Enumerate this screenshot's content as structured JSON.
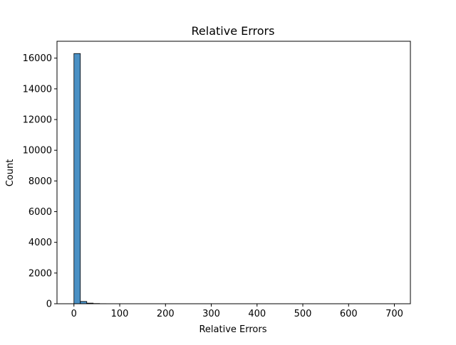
{
  "chart_data": {
    "type": "bar",
    "title": "Relative Errors",
    "xlabel": "Relative Errors",
    "ylabel": "Count",
    "xlim": [
      -37,
      735
    ],
    "ylim": [
      0,
      17100
    ],
    "xticks": [
      0,
      100,
      200,
      300,
      400,
      500,
      600,
      700
    ],
    "yticks": [
      0,
      2000,
      4000,
      6000,
      8000,
      10000,
      12000,
      14000,
      16000
    ],
    "bin_width": 14,
    "bins": [
      {
        "x0": 0,
        "x1": 14,
        "count": 16300
      },
      {
        "x0": 14,
        "x1": 28,
        "count": 150
      },
      {
        "x0": 28,
        "x1": 42,
        "count": 40
      },
      {
        "x0": 42,
        "x1": 56,
        "count": 15
      },
      {
        "x0": 56,
        "x1": 70,
        "count": 6
      }
    ],
    "grid": false,
    "colors": {
      "bar_fill": "#4a90c4",
      "bar_edge": "#000000",
      "axes": "#000000"
    }
  }
}
